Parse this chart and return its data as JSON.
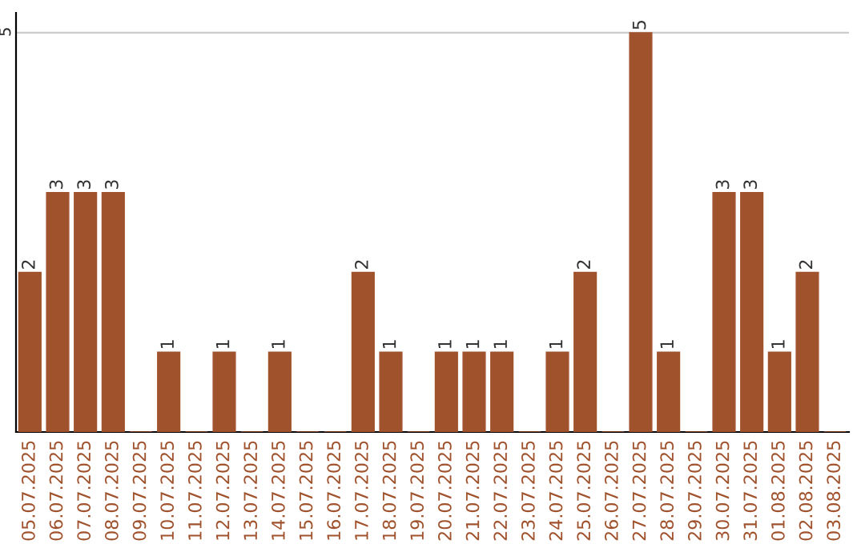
{
  "chart_data": {
    "type": "bar",
    "categories": [
      "05.07.2025",
      "06.07.2025",
      "07.07.2025",
      "08.07.2025",
      "09.07.2025",
      "10.07.2025",
      "11.07.2025",
      "12.07.2025",
      "13.07.2025",
      "14.07.2025",
      "15.07.2025",
      "16.07.2025",
      "17.07.2025",
      "18.07.2025",
      "19.07.2025",
      "20.07.2025",
      "21.07.2025",
      "22.07.2025",
      "23.07.2025",
      "24.07.2025",
      "25.07.2025",
      "26.07.2025",
      "27.07.2025",
      "28.07.2025",
      "29.07.2025",
      "30.07.2025",
      "31.07.2025",
      "01.08.2025",
      "02.08.2025",
      "03.08.2025"
    ],
    "values": [
      2,
      3,
      3,
      3,
      0,
      1,
      0,
      1,
      0,
      1,
      0,
      0,
      2,
      1,
      0,
      1,
      1,
      1,
      0,
      1,
      2,
      0,
      5,
      1,
      0,
      3,
      3,
      1,
      2,
      0
    ],
    "value_labels": [
      "2",
      "3",
      "3",
      "3",
      null,
      "1",
      null,
      "1",
      null,
      "1",
      null,
      null,
      "2",
      "1",
      null,
      "1",
      "1",
      "1",
      null,
      "1",
      "2",
      null,
      "5",
      "1",
      null,
      "3",
      "3",
      "1",
      "2",
      null
    ],
    "color": "#a0522d",
    "ylim": [
      0,
      5.25
    ],
    "yticks": [
      5
    ],
    "grid": "y"
  }
}
